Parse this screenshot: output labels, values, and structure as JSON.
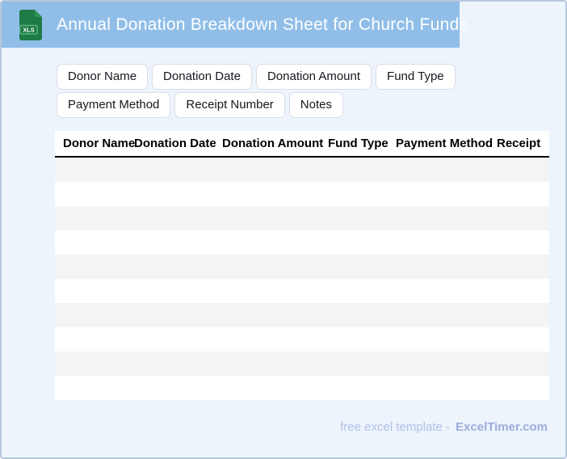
{
  "header": {
    "title": "Annual Donation Breakdown Sheet for Church Funds",
    "file_badge_label": "XLS"
  },
  "field_chips": [
    "Donor Name",
    "Donation Date",
    "Donation Amount",
    "Fund Type",
    "Payment Method",
    "Receipt Number",
    "Notes"
  ],
  "table": {
    "columns": [
      "Donor Name",
      "Donation Date",
      "Donation Amount",
      "Fund Type",
      "Payment Method",
      "Receipt"
    ],
    "empty_row_count": 10
  },
  "footer": {
    "tagline": "free excel template -",
    "brand": "ExcelTimer.com"
  },
  "colors": {
    "header_bar": "#90BEE8",
    "page_background": "#EDF4FC",
    "card_border": "#B9C7DC",
    "icon_green": "#1E7B45",
    "icon_fold_green": "#2E9457",
    "table_stripe": "#F4F4F4",
    "footer_text": "#B3C0E8",
    "footer_brand": "#9DADDA"
  }
}
